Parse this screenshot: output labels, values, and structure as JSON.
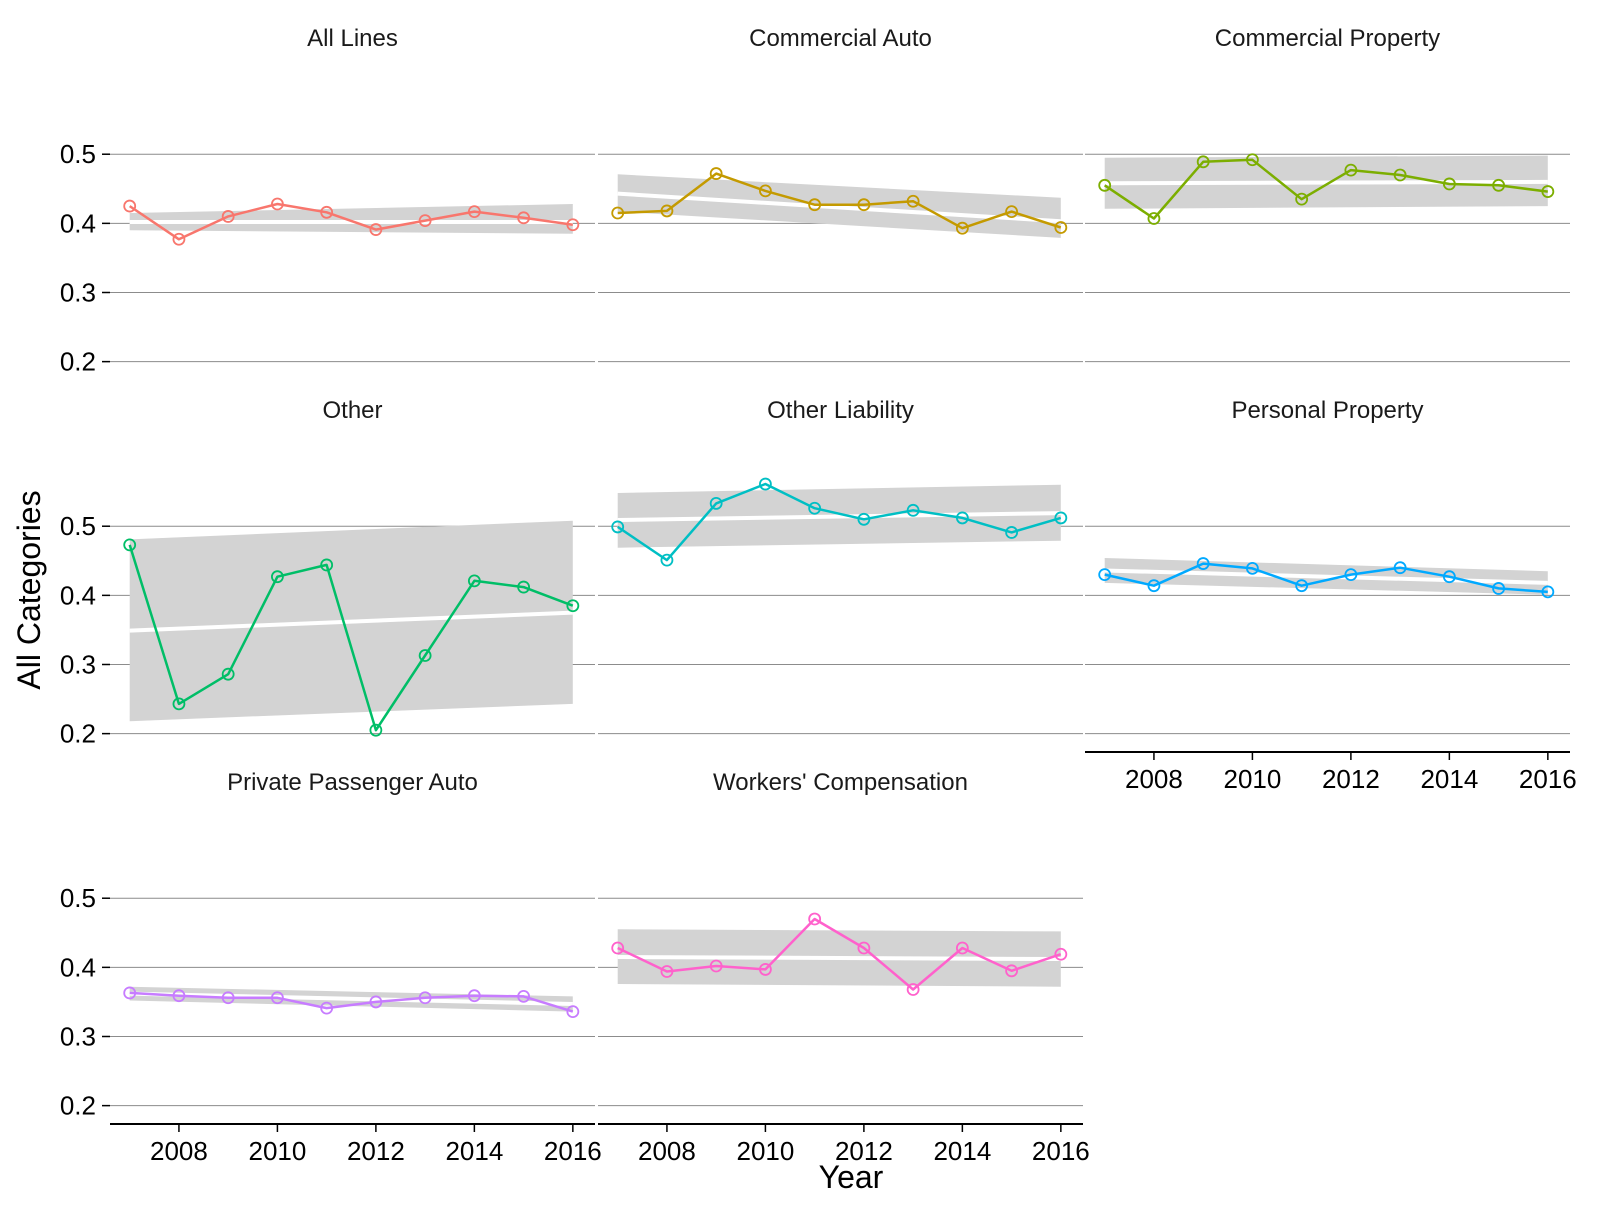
{
  "chart_data": {
    "type": "line",
    "facet_layout": "3x3 grid, shared axes",
    "xlabel": "Year",
    "ylabel": "All Categories",
    "x": [
      2007,
      2008,
      2009,
      2010,
      2011,
      2012,
      2013,
      2014,
      2015,
      2016
    ],
    "x_ticks": [
      2008,
      2010,
      2012,
      2014,
      2016
    ],
    "x_tick_labels": [
      "2008",
      "2010",
      "2012",
      "2014",
      "2016"
    ],
    "xlim": [
      2006.6,
      2016.45
    ],
    "y_ticks": [
      0.2,
      0.3,
      0.4,
      0.5
    ],
    "y_tick_labels": [
      "0.2",
      "0.3",
      "0.4",
      "0.5"
    ],
    "ylim": [
      0.185,
      0.59
    ],
    "grid": "horizontal major gridlines only",
    "smoother": "linear trend with gray confidence band (line drawn in white)",
    "markers": "open circles",
    "legend": "none",
    "series": [
      {
        "name": "All Lines",
        "color": "#F8766D",
        "values": [
          0.425,
          0.377,
          0.41,
          0.428,
          0.416,
          0.391,
          0.404,
          0.417,
          0.408,
          0.398
        ],
        "trend": [
          0.402,
          0.402
        ],
        "band_lower": [
          0.39,
          0.385
        ],
        "band_upper": [
          0.415,
          0.428
        ]
      },
      {
        "name": "Commercial Auto",
        "color": "#C49A00",
        "values": [
          0.415,
          0.418,
          0.472,
          0.447,
          0.427,
          0.427,
          0.432,
          0.393,
          0.417,
          0.394
        ],
        "trend": [
          0.443,
          0.403
        ],
        "band_lower": [
          0.417,
          0.379
        ],
        "band_upper": [
          0.471,
          0.437
        ]
      },
      {
        "name": "Commercial Property",
        "color": "#7CAE00",
        "values": [
          0.455,
          0.407,
          0.489,
          0.492,
          0.435,
          0.477,
          0.47,
          0.457,
          0.455,
          0.446
        ],
        "trend": [
          0.458,
          0.46
        ],
        "band_lower": [
          0.421,
          0.425
        ],
        "band_upper": [
          0.495,
          0.498
        ]
      },
      {
        "name": "Other",
        "color": "#00BE67",
        "values": [
          0.473,
          0.243,
          0.286,
          0.427,
          0.444,
          0.205,
          0.313,
          0.421,
          0.412,
          0.385
        ],
        "trend": [
          0.349,
          0.375
        ],
        "band_lower": [
          0.218,
          0.243
        ],
        "band_upper": [
          0.481,
          0.508
        ]
      },
      {
        "name": "Other Liability",
        "color": "#00BFC4",
        "values": [
          0.499,
          0.451,
          0.533,
          0.561,
          0.526,
          0.51,
          0.523,
          0.512,
          0.491,
          0.512
        ],
        "trend": [
          0.509,
          0.519
        ],
        "band_lower": [
          0.469,
          0.479
        ],
        "band_upper": [
          0.548,
          0.56
        ]
      },
      {
        "name": "Personal Property",
        "color": "#00A9FF",
        "values": [
          0.43,
          0.414,
          0.446,
          0.439,
          0.414,
          0.43,
          0.44,
          0.427,
          0.41,
          0.405
        ],
        "trend": [
          0.436,
          0.418
        ],
        "band_lower": [
          0.418,
          0.401
        ],
        "band_upper": [
          0.454,
          0.435
        ]
      },
      {
        "name": "Private Passenger Auto",
        "color": "#C77CFF",
        "values": [
          0.363,
          0.359,
          0.356,
          0.356,
          0.341,
          0.35,
          0.356,
          0.359,
          0.358,
          0.336
        ],
        "trend": [
          0.362,
          0.347
        ],
        "band_lower": [
          0.352,
          0.336
        ],
        "band_upper": [
          0.372,
          0.358
        ]
      },
      {
        "name": "Workers' Compensation",
        "color": "#FF61CC",
        "values": [
          0.428,
          0.394,
          0.402,
          0.397,
          0.47,
          0.428,
          0.368,
          0.428,
          0.395,
          0.419
        ],
        "trend": [
          0.415,
          0.412
        ],
        "band_lower": [
          0.376,
          0.372
        ],
        "band_upper": [
          0.455,
          0.452
        ]
      }
    ]
  }
}
